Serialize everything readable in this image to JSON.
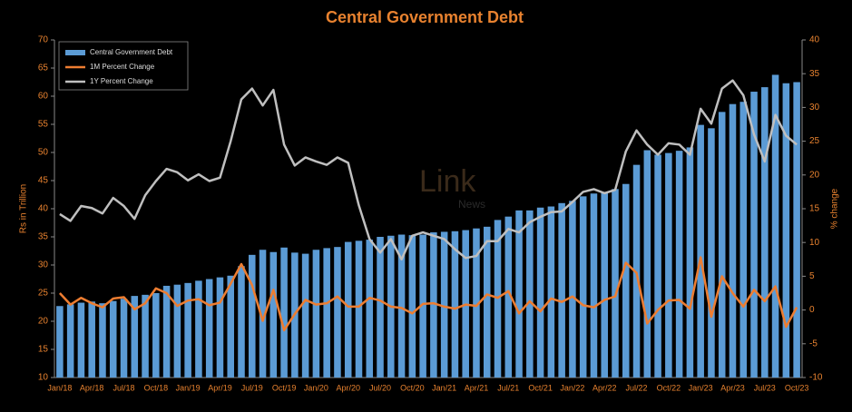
{
  "chart_data": {
    "type": "bar_line",
    "title": "Central Government Debt",
    "watermark": [
      "Link",
      "News"
    ],
    "ylabel": "Rs in Trillion",
    "y2label": "% change",
    "categories": [
      "Jan/18",
      null,
      null,
      "Apr/18",
      null,
      null,
      "Jul/18",
      null,
      null,
      "Oct/18",
      null,
      null,
      "Jan/19",
      null,
      null,
      "Apr/19",
      null,
      null,
      "Jul/19",
      null,
      null,
      "Oct/19",
      null,
      null,
      "Jan/20",
      null,
      null,
      "Apr/20",
      null,
      null,
      "Jul/20",
      null,
      null,
      "Oct/20",
      null,
      null,
      "Jan/21",
      null,
      null,
      "Apr/21",
      null,
      null,
      "Jul/21",
      null,
      null,
      "Oct/21",
      null,
      null,
      "Jan/22",
      null,
      null,
      "Apr/22",
      null,
      null,
      "Jul/22",
      null,
      null,
      "Oct/22",
      null,
      null,
      "Jan/23",
      null,
      null,
      "Apr/23",
      null,
      null,
      "Jul/23",
      null,
      null,
      "Oct/23"
    ],
    "ylim": [
      10,
      70
    ],
    "yticks": [
      10,
      15,
      20,
      25,
      30,
      35,
      40,
      45,
      50,
      55,
      60,
      65,
      70
    ],
    "y2lim": [
      -10,
      40
    ],
    "y2ticks": [
      -10,
      -5,
      0,
      5,
      10,
      15,
      20,
      25,
      30,
      35,
      40
    ],
    "series": [
      {
        "name": "Central Government Debt",
        "kind": "bar",
        "color": "#5b9bd5",
        "values": [
          22.7,
          23.0,
          23.3,
          23.5,
          23.2,
          23.6,
          24.0,
          24.5,
          24.7,
          25.0,
          26.3,
          26.5,
          26.8,
          27.2,
          27.5,
          27.8,
          28.1,
          29.8,
          31.8,
          32.7,
          32.3,
          33.1,
          32.2,
          32.0,
          32.7,
          33.0,
          33.2,
          34.1,
          34.3,
          34.5,
          35.0,
          35.2,
          35.4,
          35.3,
          35.4,
          35.8,
          35.9,
          36.0,
          36.2,
          36.5,
          36.8,
          38.0,
          38.6,
          39.7,
          39.7,
          40.2,
          40.4,
          41.0,
          41.4,
          42.2,
          42.7,
          43.0,
          43.5,
          44.4,
          47.8,
          50.4,
          49.6,
          49.9,
          50.3,
          50.9,
          54.9,
          54.3,
          57.2,
          58.6,
          59.0,
          60.8,
          61.6,
          63.8,
          62.3,
          62.5
        ]
      },
      {
        "name": "1M Percent Change",
        "kind": "line",
        "axis": "y2",
        "color": "#ed7d31",
        "values": [
          2.5,
          0.8,
          1.8,
          1.0,
          0.4,
          1.7,
          1.9,
          0.1,
          1.0,
          3.2,
          2.5,
          0.6,
          1.4,
          1.6,
          0.7,
          1.1,
          3.9,
          6.8,
          3.7,
          -1.6,
          3.0,
          -3.0,
          -0.6,
          1.5,
          0.8,
          1.0,
          2.0,
          0.5,
          0.5,
          1.8,
          1.4,
          0.5,
          0.3,
          -0.5,
          0.9,
          1.0,
          0.5,
          0.2,
          0.8,
          0.6,
          2.3,
          1.8,
          2.8,
          -0.5,
          1.3,
          -0.2,
          1.7,
          1.2,
          2.0,
          0.7,
          0.4,
          1.5,
          2.0,
          7.0,
          5.5,
          -2.0,
          0.0,
          1.4,
          1.5,
          0.2,
          7.8,
          -1.0,
          5.0,
          2.5,
          0.5,
          3.0,
          1.3,
          3.5,
          -2.5,
          0.4
        ]
      },
      {
        "name": "1Y Percent Change",
        "kind": "line",
        "axis": "y2",
        "color": "#bfbfbf",
        "values": [
          14.2,
          13.2,
          15.4,
          15.1,
          14.3,
          16.6,
          15.4,
          13.5,
          17.0,
          19.1,
          20.9,
          20.4,
          19.2,
          20.1,
          19.1,
          19.6,
          25.0,
          31.2,
          32.8,
          30.3,
          32.6,
          24.5,
          21.4,
          22.6,
          22.0,
          21.5,
          22.6,
          21.8,
          15.5,
          10.5,
          8.5,
          10.5,
          7.5,
          11.0,
          11.5,
          11.0,
          10.5,
          9.0,
          7.7,
          8.0,
          10.2,
          10.2,
          12.0,
          11.5,
          13.0,
          13.8,
          14.5,
          14.6,
          16.0,
          17.5,
          17.9,
          17.3,
          17.8,
          23.5,
          26.6,
          24.5,
          23.0,
          24.7,
          24.5,
          23.0,
          29.8,
          27.6,
          32.8,
          34.0,
          31.8,
          26.0,
          22.0,
          28.9,
          25.8,
          24.5
        ]
      }
    ]
  }
}
